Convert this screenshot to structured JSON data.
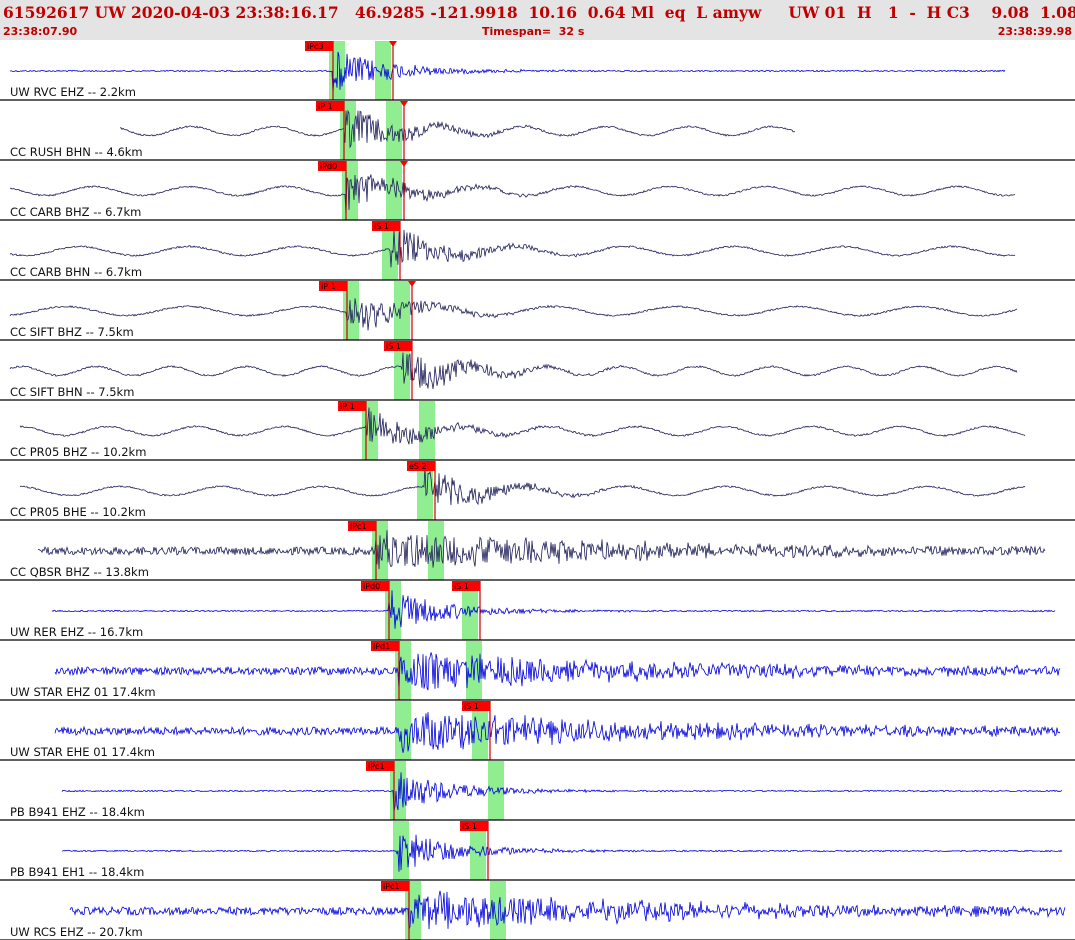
{
  "header": {
    "title": "61592617 UW 2020-04-03 23:38:16.17   46.9285 -121.9918  10.16  0.64 Ml  eq  L amyw     UW 01  H   1  -  H C3    9.08  1.08",
    "start_time": "23:38:07.90",
    "timespan": "Timespan=  32 s",
    "end_time": "23:38:39.98"
  },
  "colors": {
    "header_bg": "#e4e4e4",
    "header_text": "#c00000",
    "pick_box": "#ff0000",
    "pick_line": "#cc0000",
    "window_band": "#90ee90",
    "trace_blue": "#0000dd",
    "trace_dark": "#20205a",
    "separator": "#000000"
  },
  "channels": [
    {
      "label": "UW RVC EHZ -- 2.2km",
      "color": "blue",
      "style": "spiky",
      "picks": [
        {
          "name": "iPc3",
          "kind": "P"
        },
        {
          "name": "",
          "kind": "S"
        }
      ]
    },
    {
      "label": "CC RUSH BHN -- 4.6km",
      "color": "dark",
      "style": "wavy",
      "picks": [
        {
          "name": "iP 1",
          "kind": "P"
        },
        {
          "name": "",
          "kind": "S"
        }
      ]
    },
    {
      "label": "CC CARB BHZ -- 6.7km",
      "color": "dark",
      "style": "wavy",
      "picks": [
        {
          "name": "iPd0",
          "kind": "P"
        },
        {
          "name": "",
          "kind": "S"
        }
      ]
    },
    {
      "label": "CC CARB BHN -- 6.7km",
      "color": "dark",
      "style": "wavy",
      "picks": [
        {
          "name": "iS 1",
          "kind": "S"
        }
      ]
    },
    {
      "label": "CC SIFT BHZ -- 7.5km",
      "color": "dark",
      "style": "wavy",
      "picks": [
        {
          "name": "iP 1",
          "kind": "P"
        },
        {
          "name": "",
          "kind": "S"
        }
      ]
    },
    {
      "label": "CC SIFT BHN -- 7.5km",
      "color": "dark",
      "style": "wavy",
      "picks": [
        {
          "name": "iS 1",
          "kind": "S"
        }
      ]
    },
    {
      "label": "CC PR05 BHZ -- 10.2km",
      "color": "dark",
      "style": "wavy",
      "picks": [
        {
          "name": "iP 1",
          "kind": "P"
        }
      ]
    },
    {
      "label": "CC PR05 BHE -- 10.2km",
      "color": "dark",
      "style": "wavy",
      "picks": [
        {
          "name": "eS 2",
          "kind": "S"
        }
      ]
    },
    {
      "label": "CC QBSR BHZ -- 13.8km",
      "color": "dark",
      "style": "noisy",
      "picks": [
        {
          "name": "iPc1",
          "kind": "P"
        }
      ]
    },
    {
      "label": "UW RER EHZ -- 16.7km",
      "color": "blue",
      "style": "spiky",
      "picks": [
        {
          "name": "iPd0",
          "kind": "P"
        },
        {
          "name": "iS 1",
          "kind": "S"
        }
      ]
    },
    {
      "label": "UW STAR EHZ 01 17.4km",
      "color": "blue",
      "style": "noisy",
      "picks": [
        {
          "name": "iPd1",
          "kind": "P"
        }
      ]
    },
    {
      "label": "UW STAR EHE 01 17.4km",
      "color": "blue",
      "style": "noisy",
      "picks": [
        {
          "name": "iS 1",
          "kind": "S"
        }
      ]
    },
    {
      "label": "PB B941 EHZ -- 18.4km",
      "color": "blue",
      "style": "spiky",
      "picks": [
        {
          "name": "iPc1",
          "kind": "P"
        }
      ]
    },
    {
      "label": "PB B941 EH1 -- 18.4km",
      "color": "blue",
      "style": "spiky",
      "picks": [
        {
          "name": "iS 1",
          "kind": "S"
        }
      ]
    },
    {
      "label": "UW RCS EHZ -- 20.7km",
      "color": "blue",
      "style": "noisy",
      "picks": [
        {
          "name": "iPc1",
          "kind": "P"
        }
      ]
    }
  ]
}
